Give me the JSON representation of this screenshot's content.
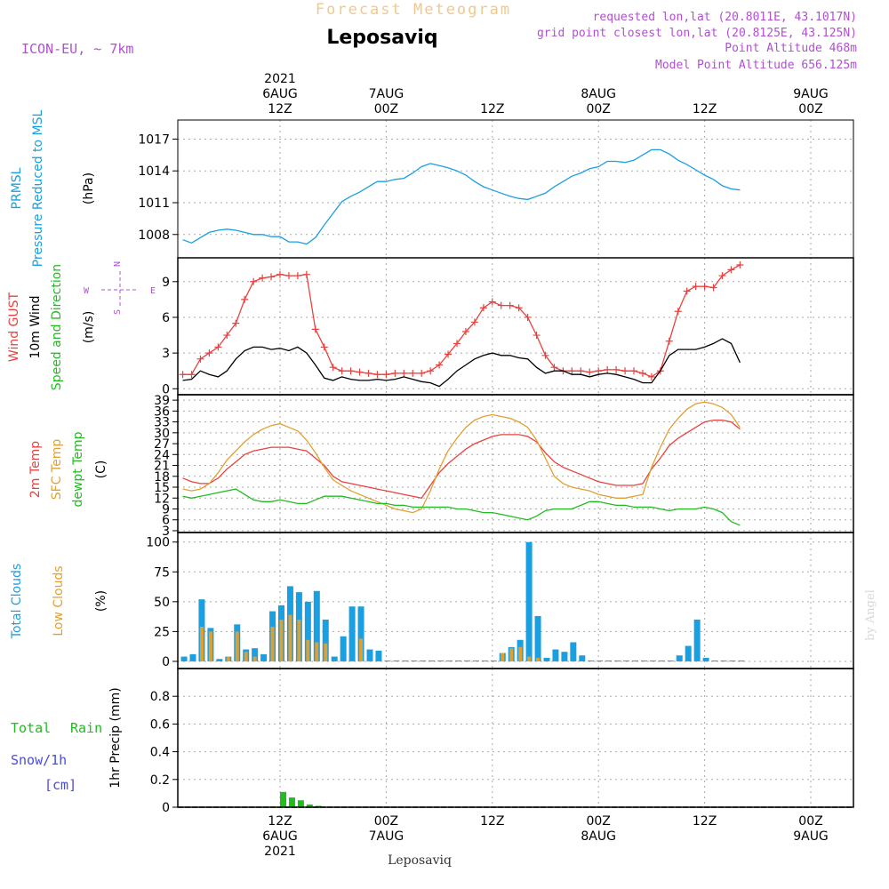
{
  "header": {
    "product": "Forecast Meteogram",
    "location": "Leposaviq",
    "model": "ICON-EU, ~ 7km",
    "requested": "requested lon,lat (20.8011E, 43.1017N)",
    "grid_point": "grid point closest lon,lat (20.8125E, 43.125N)",
    "point_altitude": "Point Altitude 468m",
    "model_altitude": "Model Point Altitude 656.125m",
    "credit": "by Angel",
    "footer_location": "Leposaviq"
  },
  "time_axis": {
    "x_range": [
      -11,
      52
    ],
    "top_labels": [
      {
        "x": 0,
        "lines": [
          "2021",
          "6AUG",
          "12Z"
        ]
      },
      {
        "x": 12,
        "lines": [
          "7AUG",
          "00Z"
        ]
      },
      {
        "x": 24,
        "lines": [
          "12Z"
        ]
      },
      {
        "x": 36,
        "lines": [
          "8AUG",
          "00Z"
        ]
      },
      {
        "x": 48,
        "lines": [
          "12Z"
        ]
      },
      {
        "x": 60,
        "lines": [
          "9AUG",
          "00Z"
        ]
      }
    ],
    "bottom_labels": [
      {
        "x": 0,
        "lines": [
          "12Z",
          "6AUG",
          "2021"
        ]
      },
      {
        "x": 12,
        "lines": [
          "00Z",
          "7AUG"
        ]
      },
      {
        "x": 24,
        "lines": [
          "12Z"
        ]
      },
      {
        "x": 36,
        "lines": [
          "00Z",
          "8AUG"
        ]
      },
      {
        "x": 48,
        "lines": [
          "12Z"
        ]
      },
      {
        "x": 60,
        "lines": [
          "00Z",
          "9AUG"
        ]
      }
    ]
  },
  "panels": {
    "pressure": {
      "label1": "PRMSL",
      "label2": "Pressure Reduced to MSL",
      "unit": "(hPa)"
    },
    "wind": {
      "label1": "Wind GUST",
      "label2": "10m Wind",
      "label3": "Speed and Direction",
      "unit": "(m/s)",
      "compass_n": "N",
      "compass_s": "S",
      "compass_w": "W",
      "compass_e": "E"
    },
    "temp": {
      "label1": "2m Temp",
      "label2": "SFC Temp",
      "label3": "dewpt Temp",
      "unit": "(C)"
    },
    "cloud": {
      "label1": "Total Clouds",
      "label2": "Low Clouds",
      "unit": "(%)"
    },
    "precip": {
      "label1": "Total",
      "label1b": "Rain",
      "label2": "Snow/1h",
      "label3": "[cm]",
      "unit": "1hr Precip (mm)"
    }
  },
  "colors": {
    "pressure": "#1a9fe0",
    "gust": "#e8423f",
    "wind": "#000000",
    "t2m": "#e8423f",
    "tsfc": "#e0a030",
    "dewpt": "#22bb22",
    "total_cloud": "#1a9fe0",
    "low_cloud": "#e0a030",
    "rain": "#22bb22",
    "title": "#f0c890",
    "info": "#b050d0"
  },
  "chart_data": [
    {
      "type": "line",
      "title": "PRMSL",
      "ylabel": "(hPa)",
      "ylim": [
        1005.8,
        1018.8
      ],
      "yticks": [
        1008,
        1011,
        1014,
        1017
      ],
      "x": [
        -11,
        -10,
        -9,
        -8,
        -7,
        -6,
        -5,
        -4,
        -3,
        -2,
        -1,
        0,
        1,
        2,
        3,
        4,
        5,
        6,
        7,
        8,
        9,
        10,
        11,
        12,
        13,
        14,
        15,
        16,
        17,
        18,
        19,
        20,
        21,
        22,
        23,
        24,
        25,
        26,
        27,
        28,
        29,
        30,
        31,
        32,
        33,
        34,
        35,
        36,
        37,
        38,
        39,
        40,
        41,
        42,
        43,
        44,
        45,
        46,
        47,
        48,
        49,
        50,
        51,
        52
      ],
      "series": [
        {
          "name": "PRMSL",
          "values": [
            1007.5,
            1007.2,
            1007.7,
            1008.2,
            1008.4,
            1008.5,
            1008.4,
            1008.2,
            1008.0,
            1008.0,
            1007.8,
            1007.8,
            1007.3,
            1007.3,
            1007.1,
            1007.7,
            1008.9,
            1010.0,
            1011.1,
            1011.6,
            1012.0,
            1012.5,
            1013.0,
            1013.0,
            1013.2,
            1013.3,
            1013.8,
            1014.4,
            1014.7,
            1014.5,
            1014.3,
            1014.0,
            1013.6,
            1013.0,
            1012.5,
            1012.2,
            1011.9,
            1011.6,
            1011.4,
            1011.3,
            1011.6,
            1011.9,
            1012.5,
            1013.0,
            1013.5,
            1013.8,
            1014.2,
            1014.4,
            1014.9,
            1014.9,
            1014.8,
            1015.0,
            1015.5,
            1016.0,
            1016.0,
            1015.6,
            1015.0,
            1014.6,
            1014.1,
            1013.6,
            1013.2,
            1012.6,
            1012.3,
            1012.2
          ]
        }
      ]
    },
    {
      "type": "line",
      "title": "Wind GUST / 10m Wind",
      "ylabel": "(m/s)",
      "ylim": [
        -0.5,
        11
      ],
      "yticks": [
        0,
        3,
        6,
        9
      ],
      "x": [
        -11,
        -10,
        -9,
        -8,
        -7,
        -6,
        -5,
        -4,
        -3,
        -2,
        -1,
        0,
        1,
        2,
        3,
        4,
        5,
        6,
        7,
        8,
        9,
        10,
        11,
        12,
        13,
        14,
        15,
        16,
        17,
        18,
        19,
        20,
        21,
        22,
        23,
        24,
        25,
        26,
        27,
        28,
        29,
        30,
        31,
        32,
        33,
        34,
        35,
        36,
        37,
        38,
        39,
        40,
        41,
        42,
        43,
        44,
        45,
        46,
        47,
        48,
        49,
        50,
        51,
        52
      ],
      "series": [
        {
          "name": "Wind GUST",
          "values": [
            1.2,
            1.2,
            2.5,
            3.0,
            3.5,
            4.5,
            5.5,
            7.5,
            9.0,
            9.3,
            9.4,
            9.6,
            9.5,
            9.5,
            9.6,
            5.0,
            3.5,
            1.8,
            1.5,
            1.5,
            1.4,
            1.3,
            1.2,
            1.2,
            1.3,
            1.3,
            1.3,
            1.3,
            1.5,
            2.0,
            2.9,
            3.8,
            4.8,
            5.6,
            6.8,
            7.3,
            7.0,
            7.0,
            6.8,
            6.0,
            4.5,
            2.8,
            1.8,
            1.5,
            1.5,
            1.5,
            1.4,
            1.5,
            1.6,
            1.6,
            1.5,
            1.5,
            1.3,
            1.0,
            1.5,
            4.0,
            6.5,
            8.2,
            8.6,
            8.6,
            8.5,
            9.5,
            10.0,
            10.4
          ]
        },
        {
          "name": "10m Wind",
          "values": [
            0.7,
            0.8,
            1.5,
            1.2,
            1.0,
            1.5,
            2.5,
            3.2,
            3.5,
            3.5,
            3.3,
            3.4,
            3.2,
            3.5,
            3.0,
            2.0,
            0.9,
            0.7,
            1.0,
            0.8,
            0.7,
            0.7,
            0.8,
            0.7,
            0.8,
            1.0,
            0.8,
            0.6,
            0.5,
            0.2,
            0.8,
            1.5,
            2.0,
            2.5,
            2.8,
            3.0,
            2.8,
            2.8,
            2.6,
            2.5,
            1.8,
            1.3,
            1.5,
            1.5,
            1.2,
            1.2,
            1.0,
            1.2,
            1.3,
            1.2,
            1.0,
            0.8,
            0.5,
            0.5,
            1.5,
            2.8,
            3.3,
            3.3,
            3.3,
            3.5,
            3.8,
            4.2,
            3.8,
            2.2
          ]
        }
      ]
    },
    {
      "type": "line",
      "title": "Temperature",
      "ylabel": "(C)",
      "ylim": [
        2.5,
        40.5
      ],
      "yticks": [
        3,
        6,
        9,
        12,
        15,
        18,
        21,
        24,
        27,
        30,
        33,
        36,
        39
      ],
      "x": [
        -11,
        -10,
        -9,
        -8,
        -7,
        -6,
        -5,
        -4,
        -3,
        -2,
        -1,
        0,
        1,
        2,
        3,
        4,
        5,
        6,
        7,
        8,
        9,
        10,
        11,
        12,
        13,
        14,
        15,
        16,
        17,
        18,
        19,
        20,
        21,
        22,
        23,
        24,
        25,
        26,
        27,
        28,
        29,
        30,
        31,
        32,
        33,
        34,
        35,
        36,
        37,
        38,
        39,
        40,
        41,
        42,
        43,
        44,
        45,
        46,
        47,
        48,
        49,
        50,
        51,
        52
      ],
      "series": [
        {
          "name": "2m Temp",
          "values": [
            17.5,
            16.5,
            16.0,
            16.0,
            17.5,
            20.0,
            22.0,
            24.0,
            25.0,
            25.5,
            26.0,
            26.0,
            26.0,
            25.5,
            25.0,
            23.0,
            21.0,
            18.0,
            16.5,
            16.0,
            15.5,
            15.0,
            14.5,
            14.0,
            13.5,
            13.0,
            12.5,
            12.0,
            15.5,
            19.0,
            21.5,
            23.5,
            25.5,
            27.0,
            28.0,
            29.0,
            29.5,
            29.5,
            29.5,
            29.0,
            27.5,
            24.5,
            22.0,
            20.5,
            19.5,
            18.5,
            17.5,
            16.5,
            16.0,
            15.5,
            15.5,
            15.5,
            16.0,
            20.0,
            23.0,
            26.5,
            28.5,
            30.0,
            31.5,
            33.0,
            33.5,
            33.5,
            33.0,
            31.0
          ]
        },
        {
          "name": "SFC Temp",
          "values": [
            14.5,
            14.0,
            14.5,
            16.0,
            19.0,
            22.5,
            25.0,
            27.5,
            29.5,
            31.0,
            32.0,
            32.5,
            31.5,
            30.5,
            28.0,
            24.5,
            20.5,
            17.0,
            15.5,
            14.0,
            13.0,
            12.0,
            11.0,
            10.0,
            9.0,
            8.5,
            8.0,
            9.0,
            14.0,
            20.0,
            25.0,
            28.5,
            31.5,
            33.5,
            34.5,
            35.0,
            34.5,
            34.0,
            33.0,
            31.5,
            28.0,
            23.0,
            18.0,
            16.0,
            15.0,
            14.5,
            14.0,
            13.0,
            12.5,
            12.0,
            12.0,
            12.5,
            13.0,
            20.5,
            26.0,
            31.0,
            34.0,
            36.5,
            38.0,
            38.5,
            38.0,
            37.0,
            35.0,
            31.5
          ]
        },
        {
          "name": "dewpt Temp",
          "values": [
            12.5,
            12.0,
            12.5,
            13.0,
            13.5,
            14.0,
            14.5,
            13.0,
            11.5,
            11.0,
            11.0,
            11.5,
            11.0,
            10.5,
            10.5,
            11.5,
            12.5,
            12.5,
            12.5,
            12.0,
            11.5,
            11.0,
            10.5,
            10.5,
            10.0,
            10.0,
            9.5,
            9.5,
            9.5,
            9.5,
            9.5,
            9.0,
            9.0,
            8.5,
            8.0,
            8.0,
            7.5,
            7.0,
            6.5,
            6.0,
            7.0,
            8.5,
            9.0,
            9.0,
            9.0,
            10.0,
            11.0,
            11.0,
            10.5,
            10.0,
            10.0,
            9.5,
            9.5,
            9.5,
            9.0,
            8.5,
            9.0,
            9.0,
            9.0,
            9.5,
            9.0,
            8.0,
            5.5,
            4.5
          ]
        }
      ]
    },
    {
      "type": "bar",
      "title": "Clouds",
      "ylabel": "(%)",
      "ylim": [
        -6,
        108
      ],
      "yticks": [
        0,
        25,
        50,
        75,
        100
      ],
      "x": [
        -11,
        -10,
        -9,
        -8,
        -7,
        -6,
        -5,
        -4,
        -3,
        -2,
        -1,
        0,
        1,
        2,
        3,
        4,
        5,
        6,
        7,
        8,
        9,
        10,
        11,
        12,
        13,
        14,
        15,
        16,
        17,
        18,
        19,
        20,
        21,
        22,
        23,
        24,
        25,
        26,
        27,
        28,
        29,
        30,
        31,
        32,
        33,
        34,
        35,
        36,
        37,
        38,
        39,
        40,
        41,
        42,
        43,
        44,
        45,
        46,
        47,
        48,
        49,
        50,
        51,
        52
      ],
      "series": [
        {
          "name": "Total Clouds",
          "values": [
            4,
            6,
            52,
            28,
            2,
            4,
            31,
            10,
            11,
            6,
            42,
            47,
            63,
            58,
            50,
            59,
            35,
            4,
            21,
            46,
            46,
            10,
            9,
            0,
            0,
            0,
            0,
            0,
            0,
            0,
            0,
            0,
            0,
            0,
            0,
            0,
            7,
            12,
            18,
            100,
            38,
            3,
            10,
            8,
            16,
            5,
            0,
            0,
            0,
            0,
            0,
            0,
            0,
            0,
            0,
            0,
            5,
            13,
            35,
            3,
            0,
            0,
            0,
            0
          ]
        },
        {
          "name": "Low Clouds",
          "values": [
            0,
            0,
            29,
            25,
            0,
            4,
            25,
            8,
            4,
            0,
            29,
            35,
            39,
            35,
            18,
            16,
            15,
            0,
            0,
            0,
            19,
            0,
            0,
            0,
            0,
            0,
            0,
            0,
            0,
            0,
            0,
            0,
            0,
            0,
            0,
            0,
            7,
            11,
            12,
            4,
            3,
            0,
            0,
            0,
            0,
            0,
            0,
            0,
            0,
            0,
            0,
            0,
            0,
            0,
            0,
            0,
            0,
            0,
            0,
            0,
            0,
            0,
            0,
            0
          ]
        }
      ]
    },
    {
      "type": "bar",
      "title": "1hr Precip",
      "ylabel": "1hr Precip (mm)",
      "ylim": [
        0,
        1.0
      ],
      "yticks": [
        0,
        0.2,
        0.4,
        0.6,
        0.8
      ],
      "x": [
        -11,
        -10,
        -9,
        -8,
        -7,
        -6,
        -5,
        -4,
        -3,
        -2,
        -1,
        0,
        1,
        2,
        3,
        4,
        5,
        6,
        7,
        8,
        9,
        10,
        11,
        12,
        13,
        14,
        15,
        16,
        17,
        18,
        19,
        20,
        21,
        22,
        23,
        24,
        25,
        26,
        27,
        28,
        29,
        30,
        31,
        32,
        33,
        34,
        35,
        36,
        37,
        38,
        39,
        40,
        41,
        42,
        43,
        44,
        45,
        46,
        47,
        48,
        49,
        50,
        51,
        52
      ],
      "series": [
        {
          "name": "Total Rain",
          "values": [
            0,
            0,
            0,
            0,
            0,
            0,
            0,
            0,
            0,
            0,
            0,
            0.11,
            0.07,
            0.05,
            0.02,
            0.01,
            0,
            0,
            0,
            0,
            0,
            0,
            0,
            0,
            0,
            0,
            0,
            0,
            0,
            0,
            0,
            0,
            0,
            0,
            0,
            0,
            0,
            0,
            0,
            0,
            0,
            0,
            0,
            0,
            0,
            0,
            0,
            0,
            0,
            0,
            0,
            0,
            0,
            0,
            0,
            0,
            0,
            0,
            0,
            0,
            0,
            0,
            0,
            0
          ]
        }
      ]
    }
  ]
}
